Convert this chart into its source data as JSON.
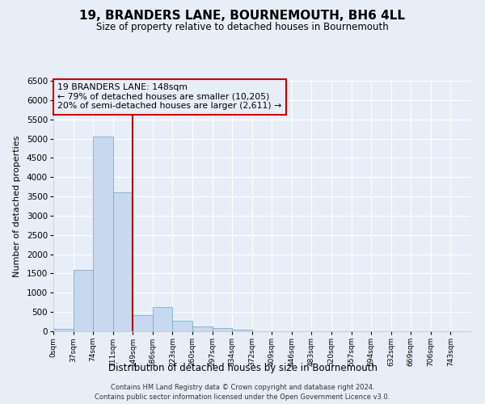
{
  "title": "19, BRANDERS LANE, BOURNEMOUTH, BH6 4LL",
  "subtitle": "Size of property relative to detached houses in Bournemouth",
  "xlabel": "Distribution of detached houses by size in Bournemouth",
  "ylabel": "Number of detached properties",
  "bar_color": "#c8d8ee",
  "bar_edge_color": "#7aadcf",
  "background_color": "#e8eef8",
  "grid_color": "#ffffff",
  "annotation_line_color": "#aa0000",
  "annotation_box_color": "#cc0000",
  "annotation_text": "19 BRANDERS LANE: 148sqm\n← 79% of detached houses are smaller (10,205)\n20% of semi-detached houses are larger (2,611) →",
  "property_bin_index": 4,
  "categories": [
    "0sqm",
    "37sqm",
    "74sqm",
    "111sqm",
    "149sqm",
    "186sqm",
    "223sqm",
    "260sqm",
    "297sqm",
    "334sqm",
    "372sqm",
    "409sqm",
    "446sqm",
    "483sqm",
    "520sqm",
    "557sqm",
    "594sqm",
    "632sqm",
    "669sqm",
    "706sqm",
    "743sqm"
  ],
  "values": [
    55,
    1600,
    5050,
    3600,
    420,
    620,
    270,
    130,
    75,
    40,
    5,
    2,
    0,
    0,
    0,
    0,
    0,
    0,
    0,
    0,
    0
  ],
  "ylim": [
    0,
    6500
  ],
  "yticks": [
    0,
    500,
    1000,
    1500,
    2000,
    2500,
    3000,
    3500,
    4000,
    4500,
    5000,
    5500,
    6000,
    6500
  ],
  "footer_line1": "Contains HM Land Registry data © Crown copyright and database right 2024.",
  "footer_line2": "Contains public sector information licensed under the Open Government Licence v3.0."
}
